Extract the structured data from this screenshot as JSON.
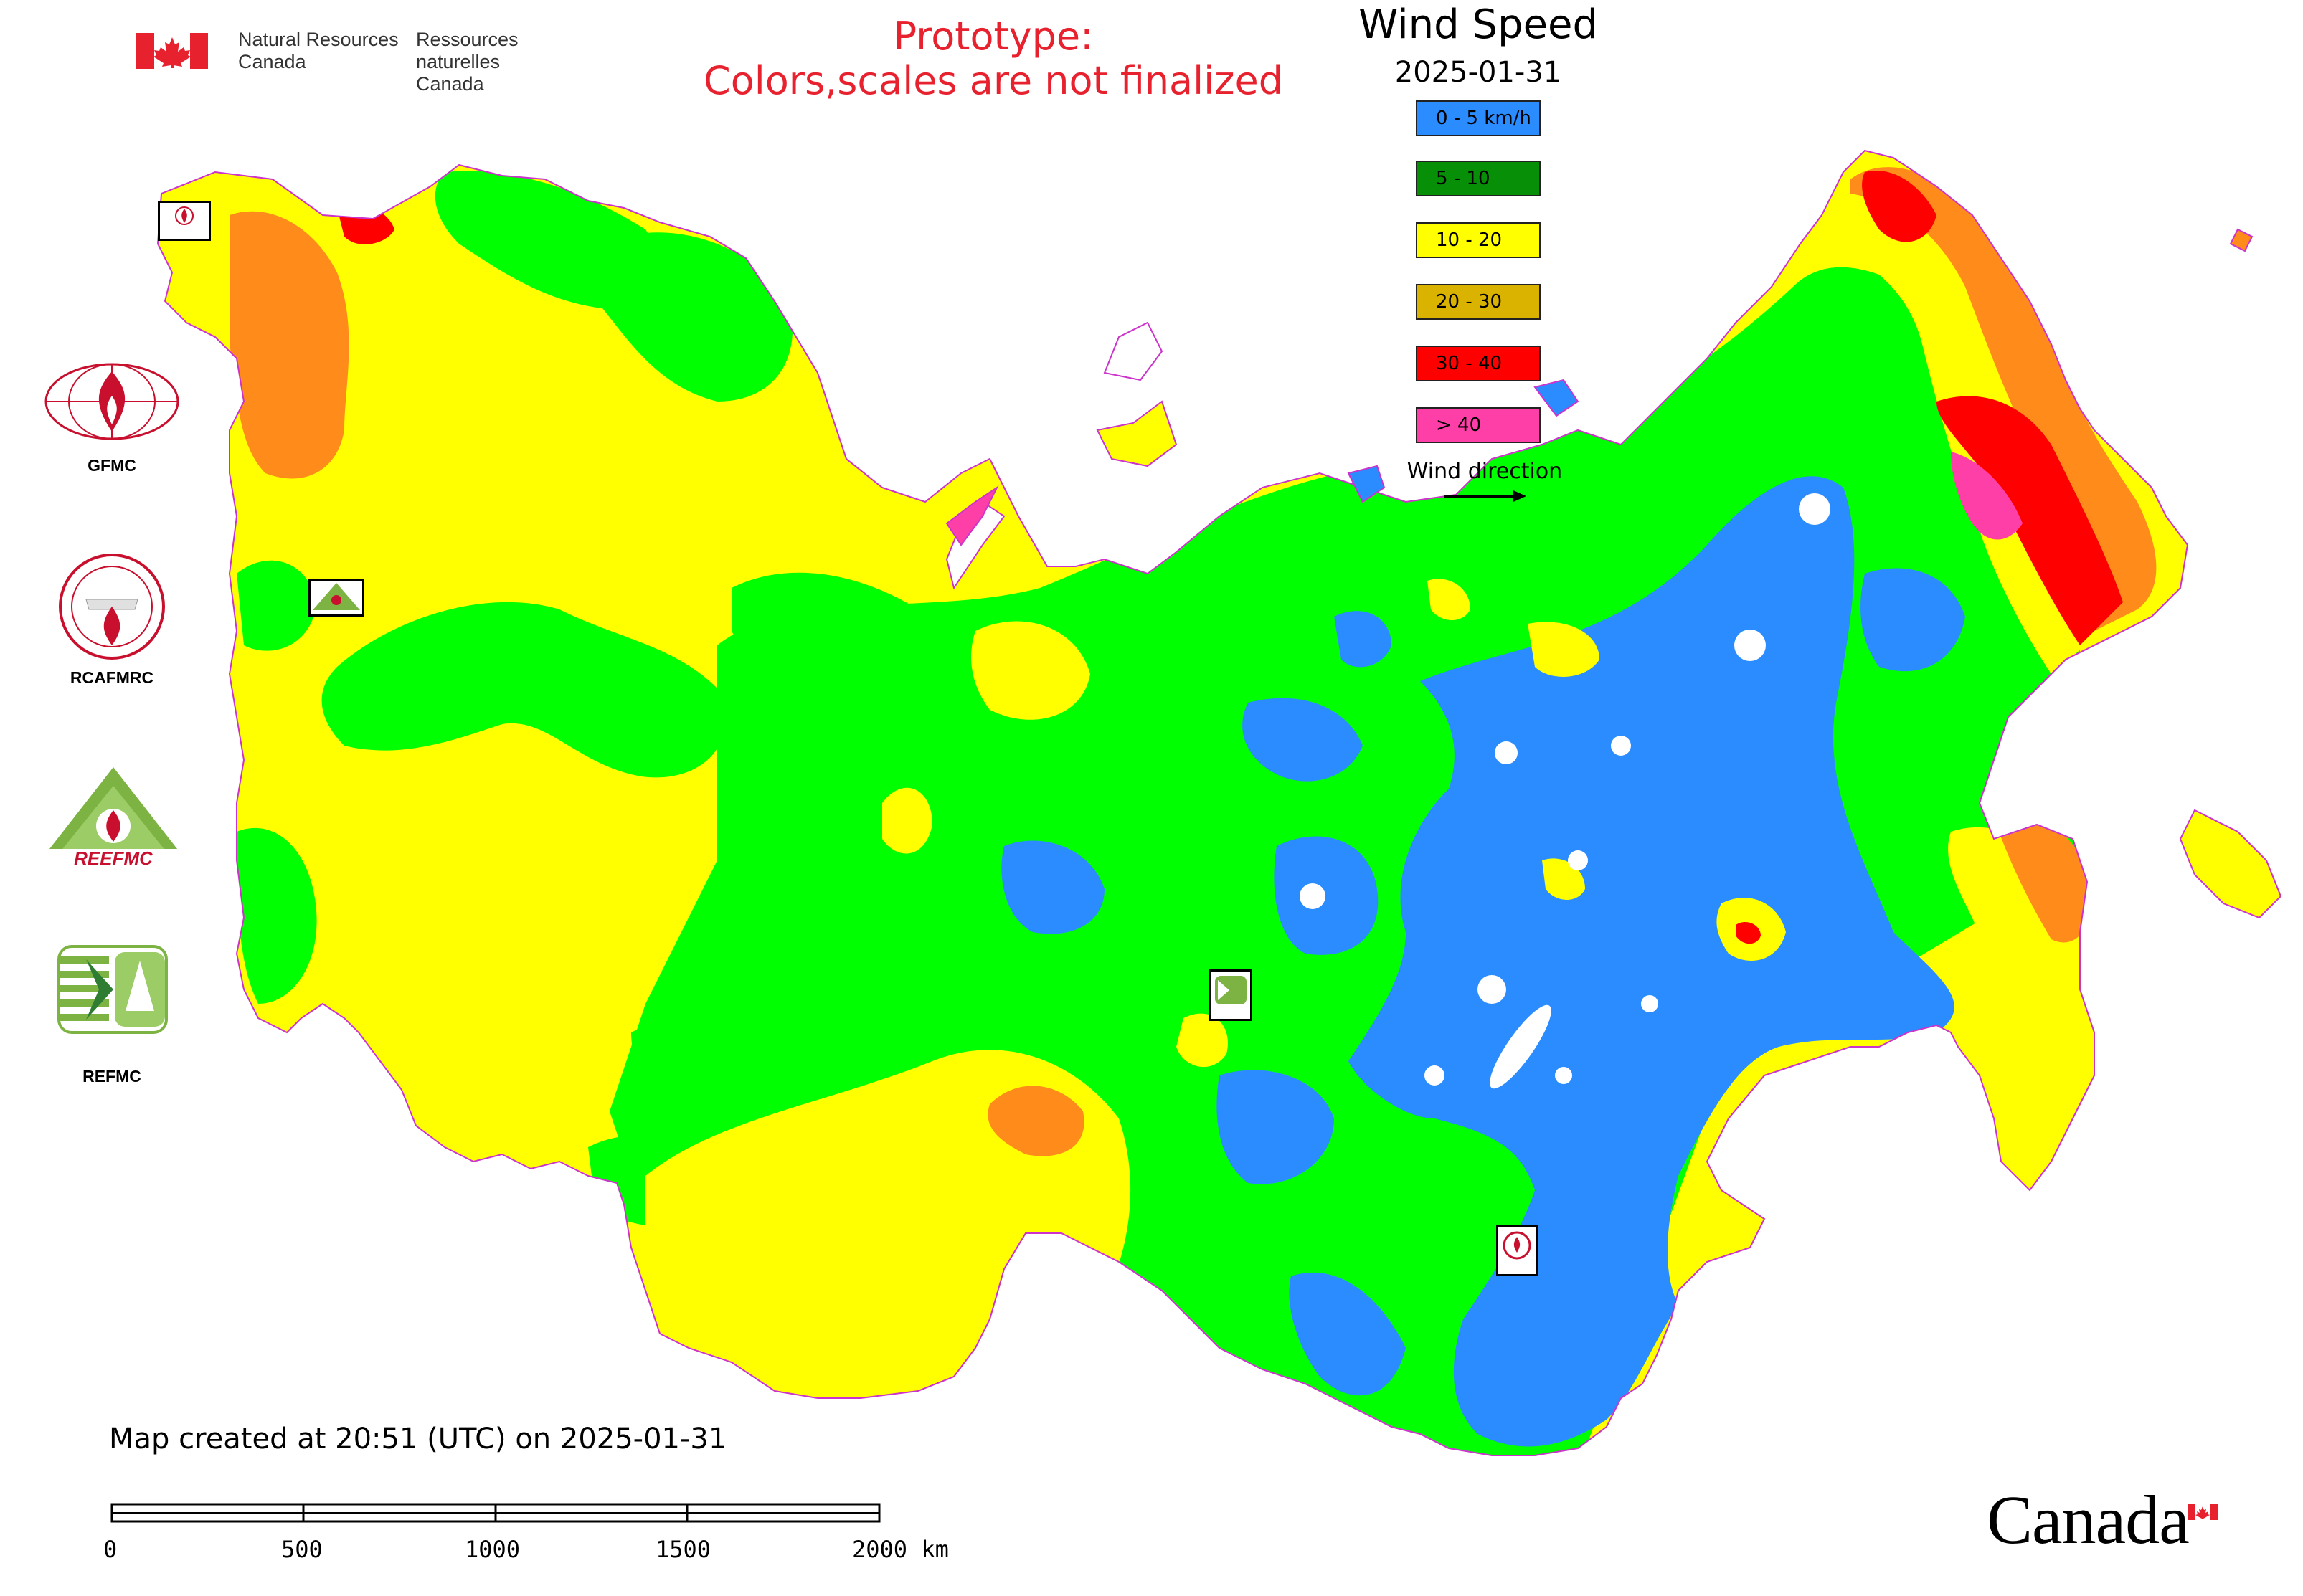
{
  "header": {
    "nrcan_en_line1": "Natural Resources",
    "nrcan_en_line2": "Canada",
    "nrcan_fr_line1": "Ressources naturelles",
    "nrcan_fr_line2": "Canada",
    "prototype_line1": "Prototype:",
    "prototype_line2": "Colors,scales are not finalized"
  },
  "legend": {
    "title": "Wind Speed",
    "date": "2025-01-31",
    "items": [
      {
        "label": "0 - 5 km/h",
        "color": "#2a8cff"
      },
      {
        "label": "5 - 10",
        "color": "#078f07"
      },
      {
        "label": "10 - 20",
        "color": "#ffff00"
      },
      {
        "label": "20 - 30",
        "color": "#d9b300"
      },
      {
        "label": "30 - 40",
        "color": "#ff0000"
      },
      {
        "label": "> 40",
        "color": "#ff3fa8"
      }
    ],
    "wind_direction_label": "Wind direction"
  },
  "organizations": [
    {
      "name": "GFMC",
      "icon": "gfmc-logo-icon"
    },
    {
      "name": "RCAFMRC",
      "icon": "rcafmrc-logo-icon"
    },
    {
      "name": "REEFMC",
      "icon": "reefmc-logo-icon"
    },
    {
      "name": "REFMC",
      "icon": "refmc-logo-icon"
    }
  ],
  "map_markers": [
    {
      "name": "GFMC",
      "icon": "gfmc-marker-icon"
    },
    {
      "name": "REEFMC",
      "icon": "reefmc-marker-icon"
    },
    {
      "name": "REFMC",
      "icon": "refmc-marker-icon"
    },
    {
      "name": "RCAFMRC",
      "icon": "rcafmrc-marker-icon"
    }
  ],
  "footer": {
    "created_text": "Map created at 20:51 (UTC) on 2025-01-31",
    "scale_labels": [
      "0",
      "500",
      "1000",
      "1500",
      "2000 km"
    ],
    "wordmark": "Canada"
  },
  "colors": {
    "blue": "#2a8cff",
    "green": "#00ff00",
    "dark_green": "#078f07",
    "yellow": "#ffff00",
    "gold": "#d9b300",
    "orange": "#ff8c1a",
    "red": "#ff0000",
    "magenta": "#ff3fa8",
    "canada_red": "#e8212e"
  }
}
